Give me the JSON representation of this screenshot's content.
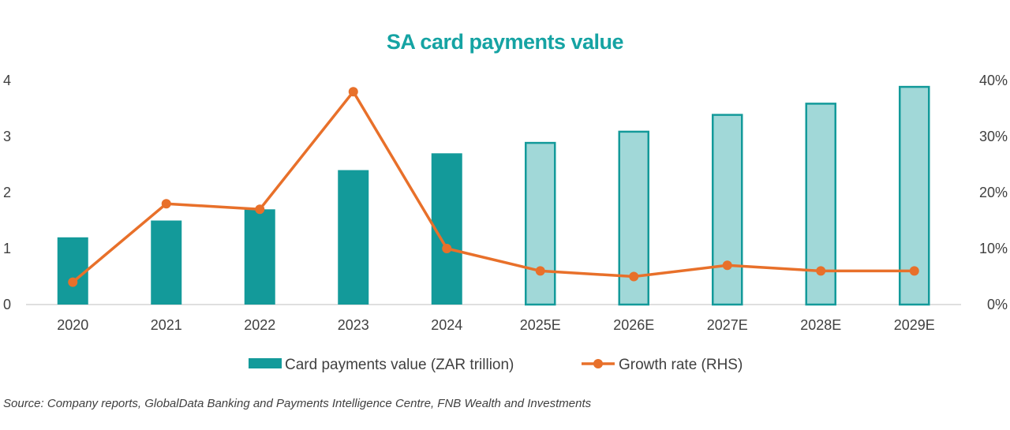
{
  "chart_data": {
    "type": "bar",
    "title": "SA card payments value",
    "categories": [
      "2020",
      "2021",
      "2022",
      "2023",
      "2024",
      "2025E",
      "2026E",
      "2027E",
      "2028E",
      "2029E"
    ],
    "series": [
      {
        "name": "Card payments value (ZAR trillion)",
        "type": "bar",
        "axis": "left",
        "values": [
          1.2,
          1.5,
          1.7,
          2.4,
          2.7,
          2.9,
          3.1,
          3.4,
          3.6,
          3.9
        ],
        "estimate_from_index": 5
      },
      {
        "name": "Growth rate (RHS)",
        "type": "line",
        "axis": "right",
        "values": [
          4,
          18,
          17,
          38,
          10,
          6,
          5,
          7,
          6,
          6
        ]
      }
    ],
    "ylim_left": [
      0,
      4
    ],
    "yticks_left": [
      "0",
      "1",
      "2",
      "3",
      "4"
    ],
    "ylim_right": [
      0,
      40
    ],
    "yticks_right": [
      "0%",
      "10%",
      "20%",
      "30%",
      "40%"
    ],
    "legend_position": "bottom",
    "grid": false,
    "colors": {
      "bar_actual": "#139a9a",
      "bar_estimate_fill": "#a1d8d8",
      "bar_estimate_border": "#139a9a",
      "line": "#e8702a",
      "title": "#15a3a3"
    }
  },
  "source": "Source: Company reports, GlobalData Banking and Payments Intelligence Centre, FNB Wealth and Investments"
}
